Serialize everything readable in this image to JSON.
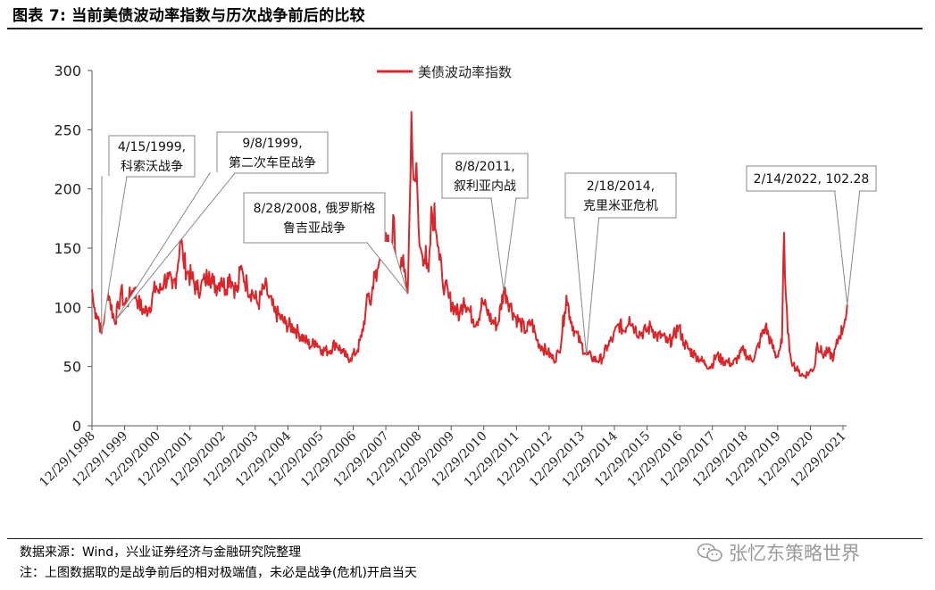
{
  "figure": {
    "title": "图表 7:  当前美债波动率指数与历次战争前后的比较",
    "source": "数据来源：Wind，兴业证券经济与金融研究院整理",
    "note": "注：上图数据取的是战争前后的相对极端值，未必是战争(危机)开启当天",
    "watermark": "张忆东策略世界",
    "watermark_icon": "wechat-icon"
  },
  "chart_data": {
    "type": "line",
    "legend": [
      "美债波动率指数"
    ],
    "legend_position": "top-center",
    "line_color": "#d9262b",
    "grid": false,
    "ylim": [
      0,
      300
    ],
    "yticks": [
      "0",
      "50",
      "100",
      "150",
      "200",
      "250",
      "300"
    ],
    "xlim": [
      "1998-12-29",
      "2021-12-29"
    ],
    "xticks": [
      "12/29/1998",
      "12/29/1999",
      "12/29/2000",
      "12/29/2001",
      "12/29/2002",
      "12/29/2003",
      "12/29/2004",
      "12/29/2005",
      "12/29/2006",
      "12/29/2007",
      "12/29/2008",
      "12/29/2009",
      "12/29/2010",
      "12/29/2011",
      "12/29/2012",
      "12/29/2013",
      "12/29/2014",
      "12/29/2015",
      "12/29/2016",
      "12/29/2017",
      "12/29/2018",
      "12/29/2019",
      "12/29/2020",
      "12/29/2021"
    ],
    "series": [
      {
        "name": "美债波动率指数",
        "points": [
          [
            "1998-12-29",
            115
          ],
          [
            "1999-01-20",
            100
          ],
          [
            "1999-02-15",
            95
          ],
          [
            "1999-03-10",
            92
          ],
          [
            "1999-04-15",
            78
          ],
          [
            "1999-05-20",
            95
          ],
          [
            "1999-06-20",
            118
          ],
          [
            "1999-07-20",
            105
          ],
          [
            "1999-09-08",
            88
          ],
          [
            "1999-10-20",
            100
          ],
          [
            "1999-11-20",
            115
          ],
          [
            "1999-12-20",
            103
          ],
          [
            "2000-02-15",
            107
          ],
          [
            "2000-04-10",
            116
          ],
          [
            "2000-06-01",
            104
          ],
          [
            "2000-08-01",
            96
          ],
          [
            "2000-10-01",
            100
          ],
          [
            "2000-12-15",
            118
          ],
          [
            "2001-01-20",
            112
          ],
          [
            "2001-03-15",
            123
          ],
          [
            "2001-05-01",
            124
          ],
          [
            "2001-06-15",
            116
          ],
          [
            "2001-08-01",
            128
          ],
          [
            "2001-09-15",
            160
          ],
          [
            "2001-10-15",
            140
          ],
          [
            "2001-12-01",
            130
          ],
          [
            "2002-01-20",
            124
          ],
          [
            "2002-03-15",
            115
          ],
          [
            "2002-05-01",
            118
          ],
          [
            "2002-06-15",
            122
          ],
          [
            "2002-08-01",
            130
          ],
          [
            "2002-09-15",
            120
          ],
          [
            "2002-11-01",
            118
          ],
          [
            "2002-12-15",
            125
          ],
          [
            "2003-02-01",
            115
          ],
          [
            "2003-03-15",
            128
          ],
          [
            "2003-05-01",
            118
          ],
          [
            "2003-06-15",
            113
          ],
          [
            "2003-07-15",
            132
          ],
          [
            "2003-08-15",
            128
          ],
          [
            "2003-10-01",
            118
          ],
          [
            "2003-12-01",
            112
          ],
          [
            "2004-02-01",
            103
          ],
          [
            "2004-04-15",
            118
          ],
          [
            "2004-06-01",
            108
          ],
          [
            "2004-08-01",
            96
          ],
          [
            "2004-10-01",
            92
          ],
          [
            "2004-12-01",
            86
          ],
          [
            "2005-03-01",
            83
          ],
          [
            "2005-05-01",
            78
          ],
          [
            "2005-07-01",
            73
          ],
          [
            "2005-09-15",
            67
          ],
          [
            "2005-11-01",
            72
          ],
          [
            "2006-01-15",
            64
          ],
          [
            "2006-04-01",
            63
          ],
          [
            "2006-06-15",
            70
          ],
          [
            "2006-09-01",
            62
          ],
          [
            "2006-10-15",
            58
          ],
          [
            "2006-12-01",
            57
          ],
          [
            "2007-02-15",
            64
          ],
          [
            "2007-04-01",
            75
          ],
          [
            "2007-05-15",
            95
          ],
          [
            "2007-06-20",
            112
          ],
          [
            "2007-07-15",
            102
          ],
          [
            "2007-08-20",
            130
          ],
          [
            "2007-09-15",
            122
          ],
          [
            "2007-10-15",
            138
          ],
          [
            "2007-11-20",
            148
          ],
          [
            "2008-01-15",
            155
          ],
          [
            "2008-02-20",
            138
          ],
          [
            "2008-03-20",
            178
          ],
          [
            "2008-04-20",
            140
          ],
          [
            "2008-05-20",
            125
          ],
          [
            "2008-06-20",
            142
          ],
          [
            "2008-07-20",
            130
          ],
          [
            "2008-08-28",
            112
          ],
          [
            "2008-09-20",
            182
          ],
          [
            "2008-10-10",
            265
          ],
          [
            "2008-10-25",
            220
          ],
          [
            "2008-11-15",
            208
          ],
          [
            "2008-12-05",
            222
          ],
          [
            "2008-12-29",
            168
          ],
          [
            "2009-01-20",
            150
          ],
          [
            "2009-02-20",
            135
          ],
          [
            "2009-03-20",
            152
          ],
          [
            "2009-04-20",
            130
          ],
          [
            "2009-05-20",
            185
          ],
          [
            "2009-06-10",
            165
          ],
          [
            "2009-06-25",
            188
          ],
          [
            "2009-07-20",
            160
          ],
          [
            "2009-08-20",
            140
          ],
          [
            "2009-09-20",
            125
          ],
          [
            "2009-10-20",
            118
          ],
          [
            "2009-12-01",
            108
          ],
          [
            "2010-02-01",
            100
          ],
          [
            "2010-04-01",
            93
          ],
          [
            "2010-05-20",
            108
          ],
          [
            "2010-07-01",
            100
          ],
          [
            "2010-09-01",
            90
          ],
          [
            "2010-10-15",
            88
          ],
          [
            "2010-12-15",
            105
          ],
          [
            "2011-02-01",
            97
          ],
          [
            "2011-04-01",
            88
          ],
          [
            "2011-06-01",
            85
          ],
          [
            "2011-08-08",
            114
          ],
          [
            "2011-09-10",
            110
          ],
          [
            "2011-10-15",
            103
          ],
          [
            "2011-12-15",
            92
          ],
          [
            "2012-02-15",
            86
          ],
          [
            "2012-04-15",
            80
          ],
          [
            "2012-06-15",
            88
          ],
          [
            "2012-08-15",
            72
          ],
          [
            "2012-10-15",
            66
          ],
          [
            "2012-12-15",
            62
          ],
          [
            "2013-02-15",
            56
          ],
          [
            "2013-04-20",
            62
          ],
          [
            "2013-06-20",
            96
          ],
          [
            "2013-07-10",
            110
          ],
          [
            "2013-08-20",
            92
          ],
          [
            "2013-10-10",
            80
          ],
          [
            "2013-12-15",
            70
          ],
          [
            "2014-02-18",
            60
          ],
          [
            "2014-04-15",
            58
          ],
          [
            "2014-06-15",
            55
          ],
          [
            "2014-08-15",
            57
          ],
          [
            "2014-10-15",
            68
          ],
          [
            "2014-12-15",
            74
          ],
          [
            "2015-02-15",
            86
          ],
          [
            "2015-04-15",
            80
          ],
          [
            "2015-06-15",
            92
          ],
          [
            "2015-08-15",
            82
          ],
          [
            "2015-10-15",
            78
          ],
          [
            "2015-12-15",
            80
          ],
          [
            "2016-02-15",
            84
          ],
          [
            "2016-04-15",
            75
          ],
          [
            "2016-06-15",
            76
          ],
          [
            "2016-08-15",
            70
          ],
          [
            "2016-10-15",
            74
          ],
          [
            "2016-12-15",
            84
          ],
          [
            "2017-02-15",
            70
          ],
          [
            "2017-04-15",
            64
          ],
          [
            "2017-06-15",
            60
          ],
          [
            "2017-08-15",
            56
          ],
          [
            "2017-10-15",
            52
          ],
          [
            "2017-12-15",
            50
          ],
          [
            "2018-02-15",
            60
          ],
          [
            "2018-04-15",
            55
          ],
          [
            "2018-06-15",
            54
          ],
          [
            "2018-08-15",
            52
          ],
          [
            "2018-10-15",
            58
          ],
          [
            "2018-12-15",
            64
          ],
          [
            "2019-02-15",
            56
          ],
          [
            "2019-04-15",
            58
          ],
          [
            "2019-06-15",
            72
          ],
          [
            "2019-08-15",
            84
          ],
          [
            "2019-10-15",
            70
          ],
          [
            "2019-12-15",
            58
          ],
          [
            "2020-02-15",
            70
          ],
          [
            "2020-03-10",
            163
          ],
          [
            "2020-03-30",
            110
          ],
          [
            "2020-04-20",
            78
          ],
          [
            "2020-05-20",
            60
          ],
          [
            "2020-06-20",
            52
          ],
          [
            "2020-08-15",
            46
          ],
          [
            "2020-10-15",
            42
          ],
          [
            "2020-12-15",
            45
          ],
          [
            "2021-02-15",
            50
          ],
          [
            "2021-03-15",
            70
          ],
          [
            "2021-05-15",
            60
          ],
          [
            "2021-07-15",
            62
          ],
          [
            "2021-09-15",
            58
          ],
          [
            "2021-11-15",
            76
          ],
          [
            "2021-12-29",
            82
          ],
          [
            "2022-01-20",
            90
          ],
          [
            "2022-02-14",
            102.28
          ]
        ]
      }
    ],
    "annotations": [
      {
        "date": "1999-04-15",
        "value": 78,
        "lines": [
          "4/15/1999,",
          "科索沃战争"
        ]
      },
      {
        "date": "1999-09-08",
        "value": 88,
        "lines": [
          "9/8/1999,",
          "第二次车臣战争"
        ]
      },
      {
        "date": "2008-08-28",
        "value": 112,
        "lines": [
          "8/28/2008, 俄罗斯格",
          "鲁吉亚战争"
        ]
      },
      {
        "date": "2011-08-08",
        "value": 114,
        "lines": [
          "8/8/2011,",
          "叙利亚内战"
        ]
      },
      {
        "date": "2014-02-18",
        "value": 60,
        "lines": [
          "2/18/2014,",
          "克里米亚危机"
        ]
      },
      {
        "date": "2022-02-14",
        "value": 102.28,
        "lines": [
          "2/14/2022, 102.28"
        ]
      }
    ]
  }
}
